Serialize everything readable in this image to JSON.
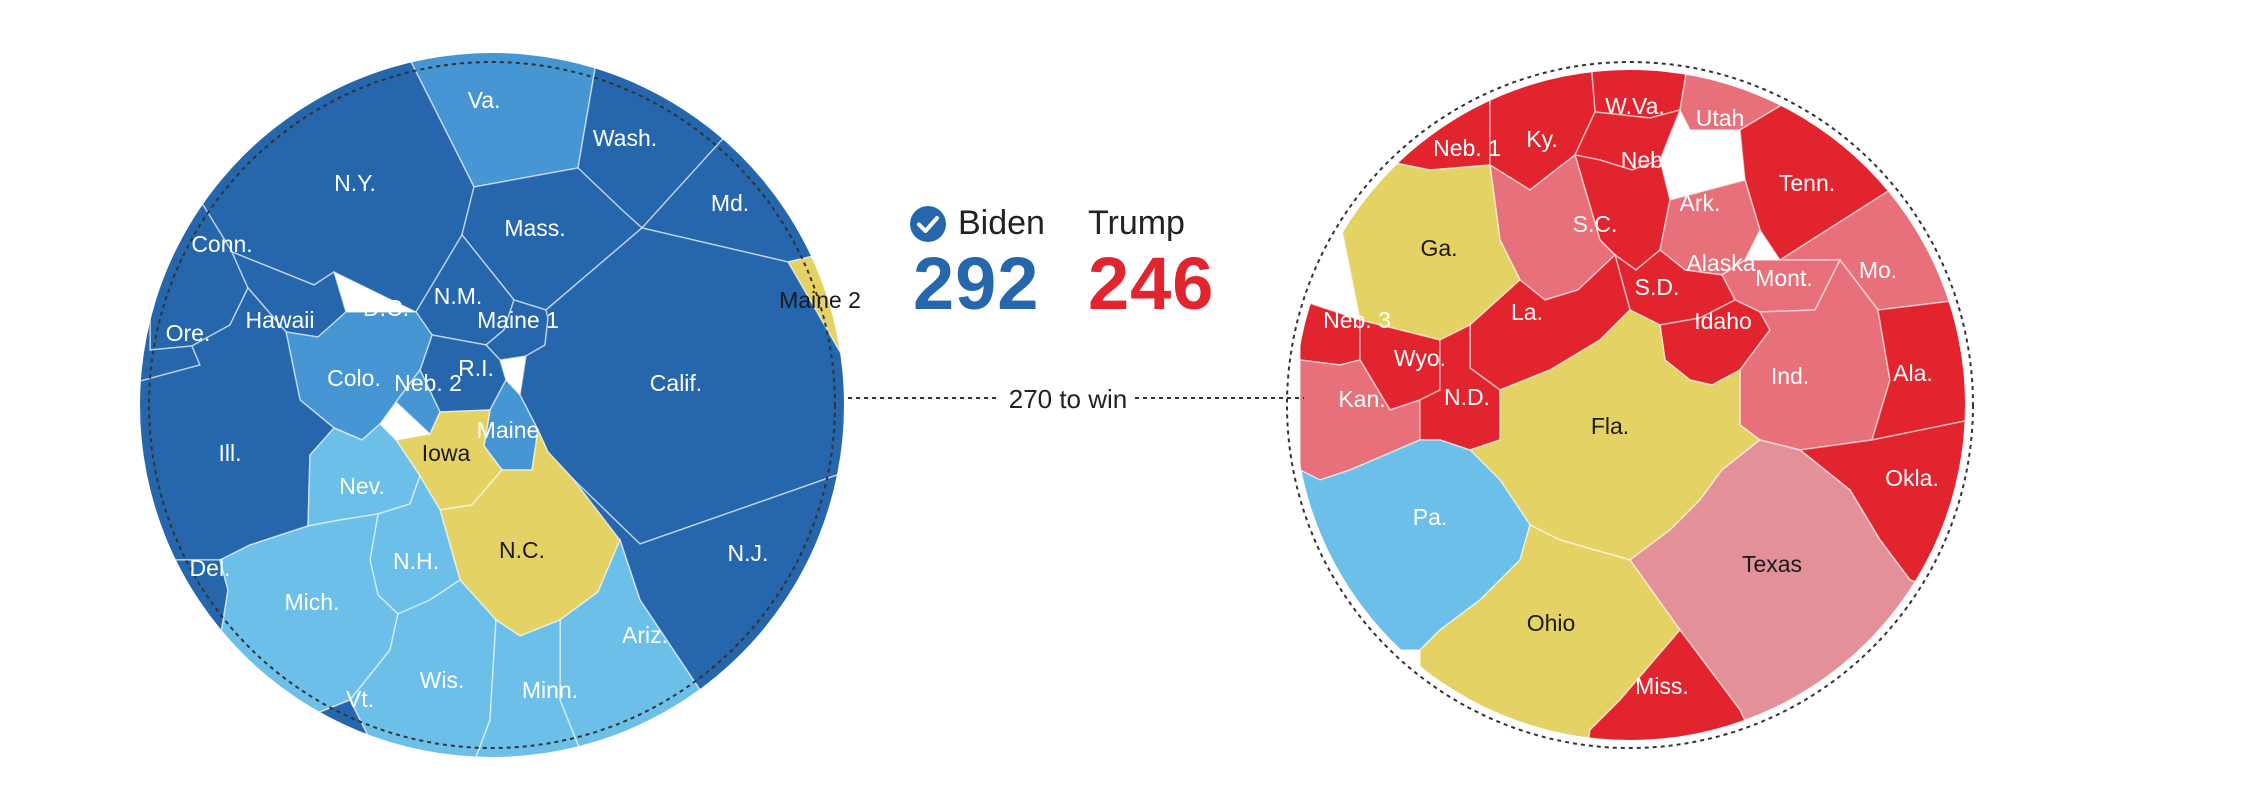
{
  "colors": {
    "solid_dem": "#2566ad",
    "lean_dem": "#4596d2",
    "likely_dem": "#6cbfe8",
    "tossup": "#e4d264",
    "lean_rep": "#e7707a",
    "likely_rep": "#e39098",
    "solid_rep": "#e1242e",
    "check": "#2566ad",
    "trump_text": "#e1242e",
    "biden_text": "#2566ad"
  },
  "tally": {
    "winner_icon": "check-icon",
    "biden": {
      "name": "Biden",
      "votes": "292"
    },
    "trump": {
      "name": "Trump",
      "votes": "246"
    }
  },
  "threshold_label": "270 to win",
  "chart_data": [
    {
      "type": "voronoi-treemap",
      "side": "left",
      "cells": [
        {
          "label": "Va.",
          "group": "lean_dem"
        },
        {
          "label": "Wash.",
          "group": "solid_dem"
        },
        {
          "label": "N.Y.",
          "group": "solid_dem"
        },
        {
          "label": "Md.",
          "group": "solid_dem"
        },
        {
          "label": "Mass.",
          "group": "solid_dem"
        },
        {
          "label": "Conn.",
          "group": "solid_dem"
        },
        {
          "label": "Maine 2",
          "group": "tossup"
        },
        {
          "label": "N.M.",
          "group": "solid_dem"
        },
        {
          "label": "Hawaii",
          "group": "solid_dem"
        },
        {
          "label": "D.C.",
          "group": "solid_dem"
        },
        {
          "label": "Maine 1",
          "group": "solid_dem"
        },
        {
          "label": "Ore.",
          "group": "solid_dem"
        },
        {
          "label": "R.I.",
          "group": "solid_dem"
        },
        {
          "label": "Colo.",
          "group": "lean_dem"
        },
        {
          "label": "Neb. 2",
          "group": "lean_dem"
        },
        {
          "label": "Calif.",
          "group": "solid_dem"
        },
        {
          "label": "Maine",
          "group": "lean_dem"
        },
        {
          "label": "Ill.",
          "group": "solid_dem"
        },
        {
          "label": "Iowa",
          "group": "tossup"
        },
        {
          "label": "Nev.",
          "group": "likely_dem"
        },
        {
          "label": "N.C.",
          "group": "tossup"
        },
        {
          "label": "N.J.",
          "group": "solid_dem"
        },
        {
          "label": "N.H.",
          "group": "likely_dem"
        },
        {
          "label": "Del.",
          "group": "solid_dem"
        },
        {
          "label": "Mich.",
          "group": "likely_dem"
        },
        {
          "label": "Ariz.",
          "group": "likely_dem"
        },
        {
          "label": "Wis.",
          "group": "likely_dem"
        },
        {
          "label": "Minn.",
          "group": "likely_dem"
        },
        {
          "label": "Vt.",
          "group": "solid_dem"
        }
      ]
    },
    {
      "type": "voronoi-treemap",
      "side": "right",
      "cells": [
        {
          "label": "W.Va.",
          "group": "solid_rep"
        },
        {
          "label": "Utah",
          "group": "lean_rep"
        },
        {
          "label": "Neb. 1",
          "group": "solid_rep"
        },
        {
          "label": "Ky.",
          "group": "solid_rep"
        },
        {
          "label": "Neb.",
          "group": "solid_rep"
        },
        {
          "label": "Tenn.",
          "group": "solid_rep"
        },
        {
          "label": "Ark.",
          "group": "solid_rep"
        },
        {
          "label": "S.C.",
          "group": "lean_rep"
        },
        {
          "label": "Ga.",
          "group": "tossup"
        },
        {
          "label": "Alaska",
          "group": "lean_rep"
        },
        {
          "label": "Mo.",
          "group": "lean_rep"
        },
        {
          "label": "Mont.",
          "group": "lean_rep"
        },
        {
          "label": "S.D.",
          "group": "solid_rep"
        },
        {
          "label": "La.",
          "group": "solid_rep"
        },
        {
          "label": "Neb. 3",
          "group": "solid_rep"
        },
        {
          "label": "Idaho",
          "group": "solid_rep"
        },
        {
          "label": "Wyo.",
          "group": "solid_rep"
        },
        {
          "label": "Ind.",
          "group": "lean_rep"
        },
        {
          "label": "Ala.",
          "group": "solid_rep"
        },
        {
          "label": "Kan.",
          "group": "lean_rep"
        },
        {
          "label": "N.D.",
          "group": "solid_rep"
        },
        {
          "label": "Fla.",
          "group": "tossup"
        },
        {
          "label": "Okla.",
          "group": "solid_rep"
        },
        {
          "label": "Pa.",
          "group": "likely_dem"
        },
        {
          "label": "Texas",
          "group": "likely_rep"
        },
        {
          "label": "Ohio",
          "group": "tossup"
        },
        {
          "label": "Miss.",
          "group": "solid_rep"
        }
      ]
    }
  ]
}
